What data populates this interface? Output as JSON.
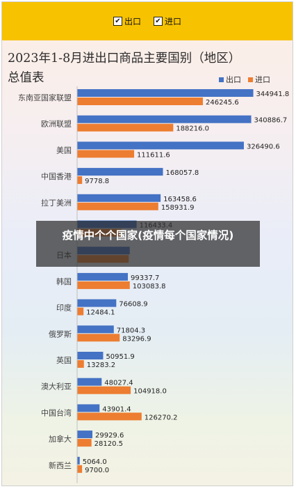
{
  "toggles": [
    {
      "label": "出口",
      "checked": true
    },
    {
      "label": "进口",
      "checked": true
    }
  ],
  "overlay_text": "疫情中个个国家(疫情每个国家情况)",
  "chart_data": {
    "type": "bar",
    "orientation": "horizontal",
    "title": "2023年1-8月进出口商品主要国别（地区）总值表",
    "legend_position": "top-right",
    "grid": false,
    "categories": [
      "东南亚国家联盟",
      "欧洲联盟",
      "美国",
      "中国香港",
      "拉丁美洲",
      "",
      "日本",
      "韩国",
      "印度",
      "俄罗斯",
      "英国",
      "澳大利亚",
      "中国台湾",
      "加拿大",
      "新西兰"
    ],
    "series": [
      {
        "name": "出口",
        "color": "#4472c4",
        "values": [
          344941.8,
          340886.7,
          326490.6,
          168057.8,
          163458.6,
          116433.4,
          103000.3,
          99337.7,
          76608.9,
          71804.3,
          50951.9,
          48027.4,
          43901.4,
          29929.6,
          5064.0
        ],
        "labels": [
          "344941.8",
          "340886.7",
          "326490.6",
          "168057.8",
          "163458.6",
          "116433.4",
          "",
          "99337.7",
          "76608.9",
          "71804.3",
          "50951.9",
          "48027.4",
          "43901.4",
          "29929.6",
          "5064.0"
        ]
      },
      {
        "name": "进口",
        "color": "#ed7d31",
        "values": [
          246245.6,
          188216.0,
          111611.6,
          9778.8,
          158931.9,
          87000.0,
          101000.5,
          103083.8,
          12484.1,
          83296.9,
          13283.2,
          104918.0,
          126270.2,
          28120.5,
          9700.0
        ],
        "labels": [
          "246245.6",
          "188216.0",
          "111611.6",
          "9778.8",
          "158931.9",
          "",
          "",
          "103083.8",
          "12484.1",
          "83296.9",
          "13283.2",
          "104918.0",
          "126270.2",
          "28120.5",
          "9700.0"
        ]
      }
    ]
  }
}
